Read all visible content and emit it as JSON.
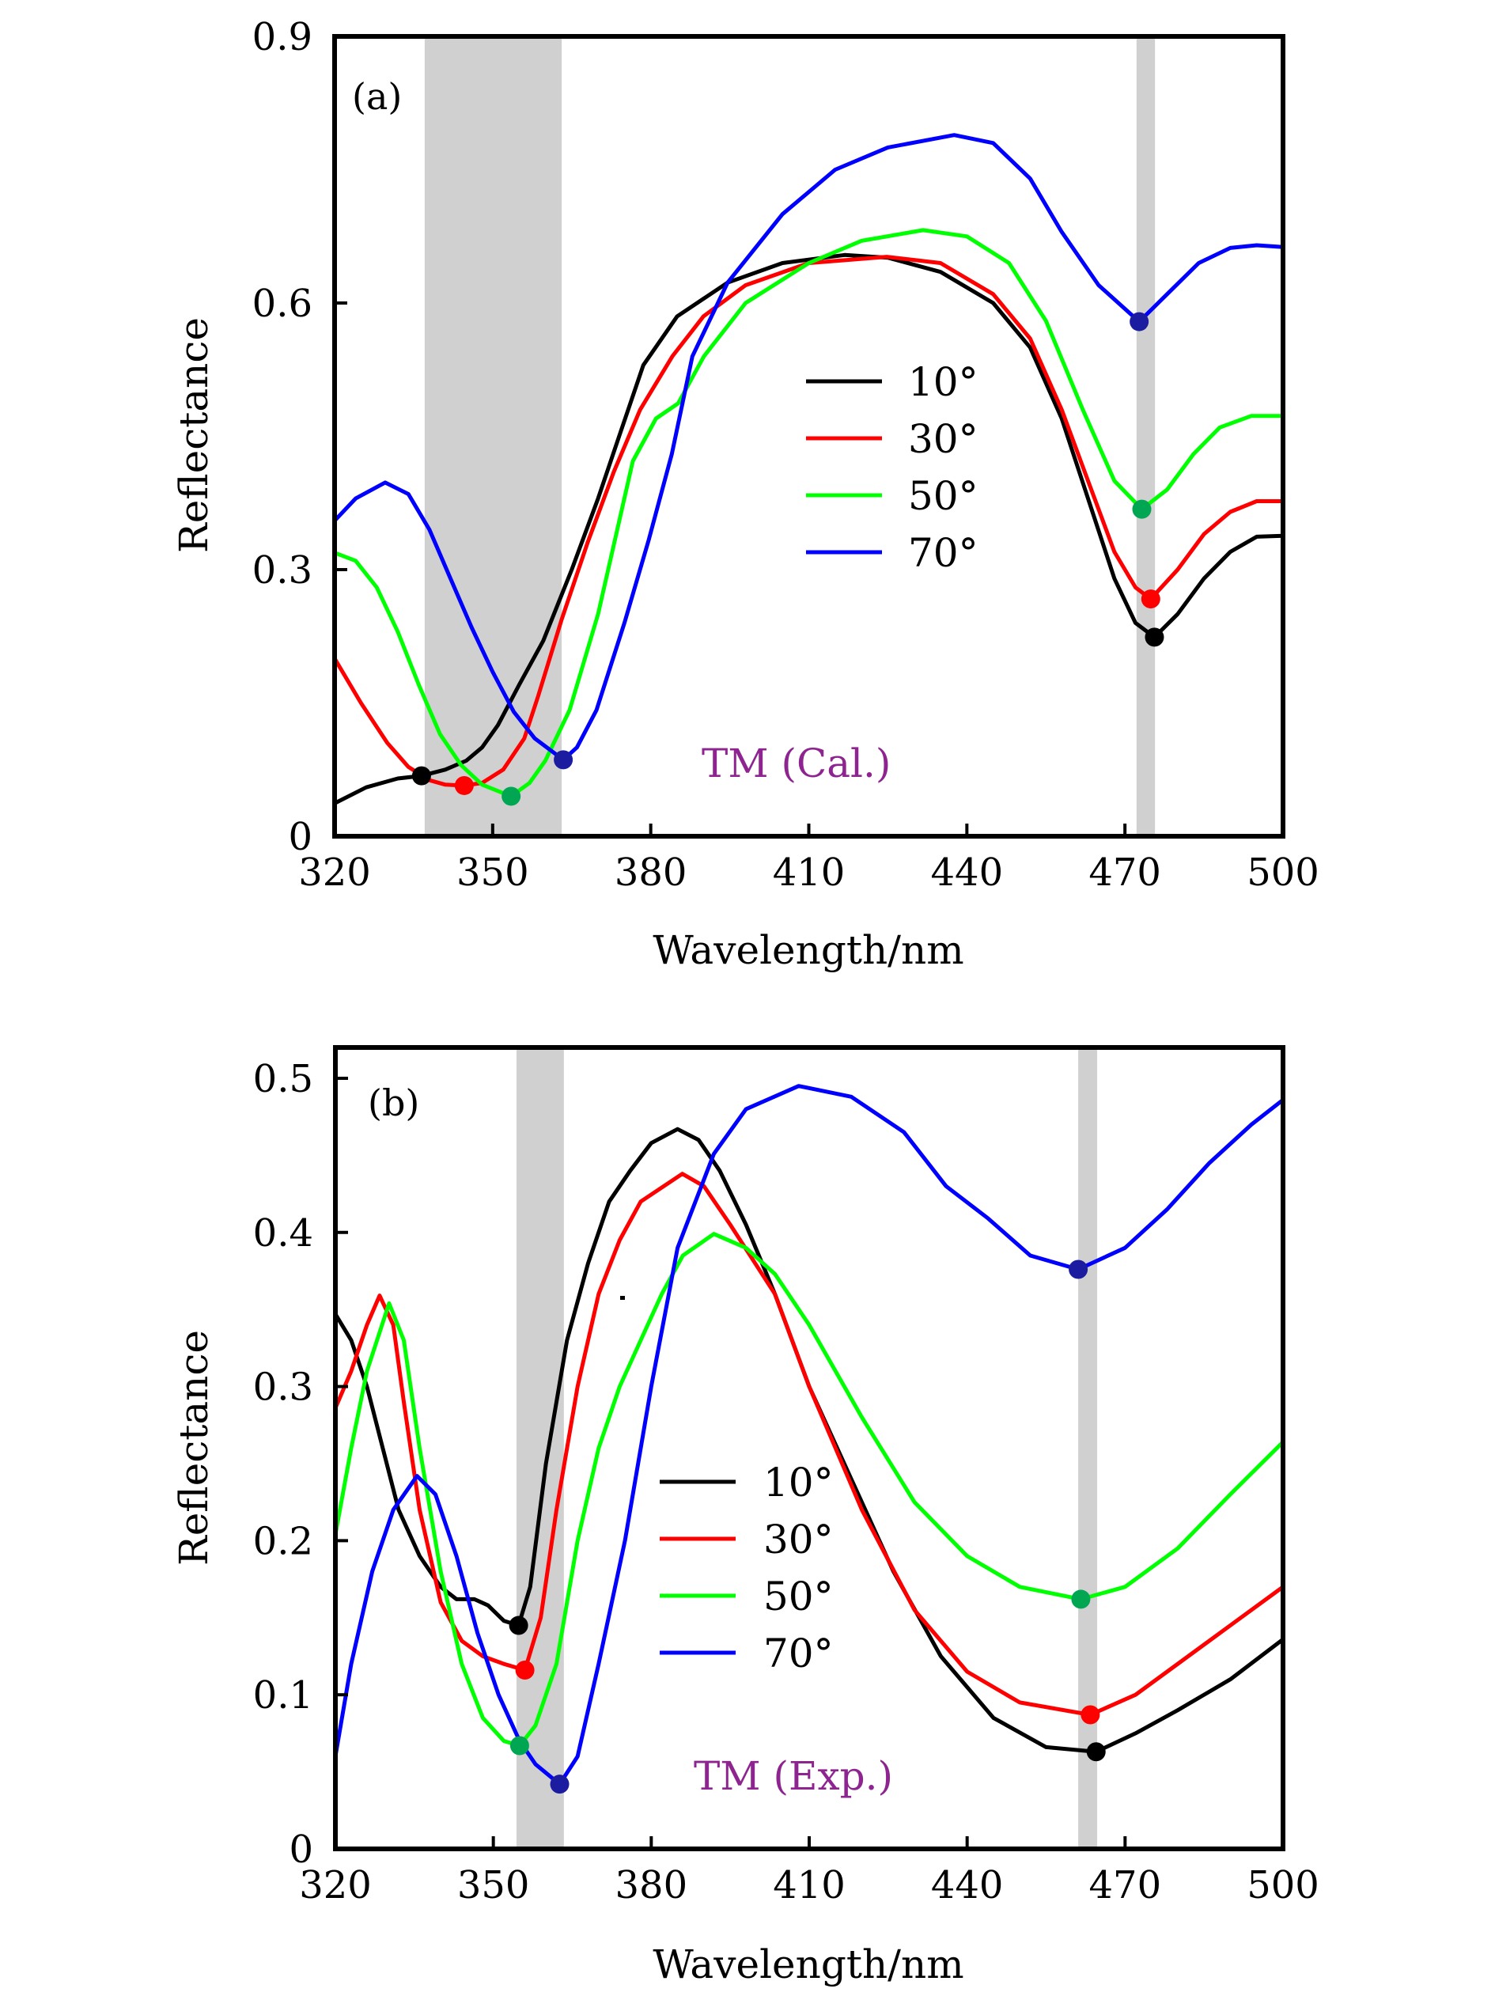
{
  "chart_data": [
    {
      "type": "line",
      "panel_label": "(a)",
      "title": "",
      "annotation": "TM (Cal.)",
      "annotation_color": "#8e2490",
      "xlabel": "Wavelength/nm",
      "ylabel": "Reflectance",
      "xlim": [
        320,
        500
      ],
      "ylim": [
        0,
        0.9
      ],
      "xticks": [
        320,
        350,
        380,
        410,
        440,
        470,
        500
      ],
      "xtick_labels": [
        "320",
        "350",
        "380",
        "410",
        "440",
        "470",
        "500"
      ],
      "yticks": [
        0,
        0.3,
        0.6,
        0.9
      ],
      "ytick_labels": [
        "0",
        "0.3",
        "0.6",
        "0.9"
      ],
      "grid": false,
      "legend_position": "center-right",
      "shaded_bands": [
        {
          "x_start": 337.1,
          "x_end": 363.1,
          "color": "#d0d0d0"
        },
        {
          "x_start": 472.2,
          "x_end": 475.7,
          "color": "#d0d0d0"
        }
      ],
      "series": [
        {
          "name": "10°",
          "color": "#000000",
          "marker_color": "#000000",
          "x": [
            320,
            326,
            332,
            336.5,
            341,
            345,
            348,
            351,
            355,
            359.6,
            365,
            370,
            374,
            378.6,
            385,
            394.6,
            405,
            416.8,
            425,
            435,
            445,
            452,
            458,
            463,
            468,
            472,
            475.6,
            480,
            485,
            490,
            495,
            500
          ],
          "y": [
            0.037,
            0.055,
            0.065,
            0.068,
            0.075,
            0.085,
            0.1,
            0.125,
            0.17,
            0.22,
            0.3,
            0.38,
            0.45,
            0.53,
            0.585,
            0.623,
            0.645,
            0.654,
            0.651,
            0.635,
            0.6,
            0.55,
            0.47,
            0.38,
            0.29,
            0.24,
            0.224,
            0.25,
            0.29,
            0.32,
            0.337,
            0.338
          ],
          "markers": [
            {
              "x": 336.5,
              "y": 0.068
            },
            {
              "x": 475.6,
              "y": 0.224
            }
          ]
        },
        {
          "name": "30°",
          "color": "#ff0000",
          "marker_color": "#ff0000",
          "x": [
            320,
            325,
            330,
            334,
            338,
            341,
            344.6,
            348,
            352,
            356,
            358.6,
            363.1,
            368,
            373,
            378,
            384.1,
            390,
            398,
            410,
            424.8,
            435,
            445,
            452,
            458,
            463,
            468,
            472,
            474.9,
            480,
            485,
            490,
            495,
            500
          ],
          "y": [
            0.2,
            0.15,
            0.105,
            0.078,
            0.063,
            0.058,
            0.057,
            0.06,
            0.075,
            0.11,
            0.157,
            0.244,
            0.33,
            0.41,
            0.48,
            0.54,
            0.585,
            0.62,
            0.645,
            0.652,
            0.645,
            0.61,
            0.56,
            0.48,
            0.4,
            0.32,
            0.28,
            0.267,
            0.3,
            0.34,
            0.365,
            0.377,
            0.377
          ],
          "markers": [
            {
              "x": 344.6,
              "y": 0.057
            },
            {
              "x": 474.9,
              "y": 0.267
            }
          ]
        },
        {
          "name": "50°",
          "color": "#00ff00",
          "marker_color": "#00a651",
          "x": [
            320,
            324,
            328,
            332,
            336,
            340,
            344,
            348,
            353.5,
            357,
            360,
            364.6,
            370,
            376.6,
            381,
            385.2,
            390.1,
            398,
            410,
            420,
            431.7,
            440,
            448,
            455,
            462,
            468,
            473.2,
            478,
            483,
            488,
            494,
            500
          ],
          "y": [
            0.319,
            0.31,
            0.28,
            0.23,
            0.17,
            0.115,
            0.08,
            0.058,
            0.045,
            0.06,
            0.085,
            0.142,
            0.25,
            0.422,
            0.47,
            0.487,
            0.54,
            0.6,
            0.645,
            0.67,
            0.682,
            0.675,
            0.645,
            0.58,
            0.48,
            0.4,
            0.368,
            0.39,
            0.43,
            0.46,
            0.473,
            0.473
          ],
          "markers": [
            {
              "x": 353.5,
              "y": 0.045
            },
            {
              "x": 473.2,
              "y": 0.368
            }
          ]
        },
        {
          "name": "70°",
          "color": "#0000ff",
          "marker_color": "#1c1ca0",
          "x": [
            320,
            324,
            329.6,
            334,
            338,
            342,
            346,
            350,
            354,
            358,
            363.4,
            366,
            369.7,
            375,
            379.6,
            384,
            387.9,
            394.6,
            405,
            415,
            425,
            437.6,
            445,
            452,
            458,
            465,
            472.7,
            478,
            484,
            490,
            495,
            500
          ],
          "y": [
            0.355,
            0.38,
            0.398,
            0.385,
            0.345,
            0.29,
            0.235,
            0.185,
            0.14,
            0.11,
            0.086,
            0.1,
            0.142,
            0.24,
            0.333,
            0.43,
            0.54,
            0.623,
            0.7,
            0.75,
            0.775,
            0.789,
            0.78,
            0.74,
            0.68,
            0.62,
            0.579,
            0.61,
            0.645,
            0.662,
            0.665,
            0.663
          ],
          "markers": [
            {
              "x": 363.4,
              "y": 0.086
            },
            {
              "x": 472.7,
              "y": 0.579
            }
          ]
        }
      ]
    },
    {
      "type": "line",
      "panel_label": "(b)",
      "title": "",
      "annotation": "TM (Exp.)",
      "annotation_color": "#8e2490",
      "xlabel": "Wavelength/nm",
      "ylabel": "Reflectance",
      "xlim": [
        320,
        500
      ],
      "ylim": [
        0,
        0.52
      ],
      "xticks": [
        320,
        350,
        380,
        410,
        440,
        470,
        500
      ],
      "xtick_labels": [
        "320",
        "350",
        "380",
        "410",
        "440",
        "470",
        "500"
      ],
      "yticks": [
        0,
        0.1,
        0.2,
        0.3,
        0.4,
        0.5
      ],
      "ytick_labels": [
        "0",
        "0.1",
        "0.2",
        "0.3",
        "0.4",
        "0.5"
      ],
      "grid": false,
      "legend_position": "center-left",
      "shaded_bands": [
        {
          "x_start": 354.4,
          "x_end": 363.4,
          "color": "#d0d0d0"
        },
        {
          "x_start": 461.1,
          "x_end": 464.7,
          "color": "#d0d0d0"
        }
      ],
      "series": [
        {
          "name": "10°",
          "color": "#000000",
          "marker_color": "#000000",
          "x": [
            320,
            323,
            326,
            329,
            332,
            336,
            340,
            343,
            346.4,
            349,
            352,
            354.8,
            357,
            360,
            364,
            368,
            372,
            376,
            380,
            385,
            389,
            393,
            398,
            403.5,
            410,
            418,
            426,
            435,
            445,
            455,
            464.5,
            472,
            480,
            490,
            500
          ],
          "y": [
            0.347,
            0.33,
            0.3,
            0.26,
            0.22,
            0.19,
            0.17,
            0.162,
            0.162,
            0.158,
            0.148,
            0.145,
            0.17,
            0.25,
            0.33,
            0.38,
            0.42,
            0.44,
            0.458,
            0.467,
            0.46,
            0.44,
            0.405,
            0.36,
            0.3,
            0.24,
            0.18,
            0.125,
            0.085,
            0.066,
            0.063,
            0.075,
            0.09,
            0.11,
            0.136
          ],
          "markers": [
            {
              "x": 354.8,
              "y": 0.145
            },
            {
              "x": 464.5,
              "y": 0.063
            }
          ]
        },
        {
          "name": "30°",
          "color": "#ff0000",
          "marker_color": "#ff0000",
          "x": [
            320,
            323,
            326,
            328.4,
            331,
            333,
            336,
            340,
            344,
            348,
            352,
            356,
            359,
            362,
            366,
            370,
            374,
            378,
            385.9,
            390,
            395,
            403.5,
            410,
            420,
            430,
            440,
            450,
            463.4,
            472,
            480,
            490,
            500
          ],
          "y": [
            0.286,
            0.31,
            0.34,
            0.359,
            0.34,
            0.29,
            0.22,
            0.16,
            0.135,
            0.125,
            0.12,
            0.116,
            0.15,
            0.22,
            0.3,
            0.36,
            0.395,
            0.42,
            0.438,
            0.43,
            0.405,
            0.36,
            0.3,
            0.22,
            0.155,
            0.115,
            0.095,
            0.087,
            0.1,
            0.12,
            0.145,
            0.17
          ],
          "markers": [
            {
              "x": 356.0,
              "y": 0.116
            },
            {
              "x": 463.4,
              "y": 0.087
            }
          ]
        },
        {
          "name": "50°",
          "color": "#00ff00",
          "marker_color": "#00a651",
          "x": [
            320,
            323,
            326,
            330.2,
            333,
            336,
            340,
            344,
            348,
            352,
            355,
            358,
            362,
            366,
            370,
            374,
            378,
            382,
            386,
            391.9,
            398,
            403.5,
            410,
            420,
            430,
            440,
            450,
            461.6,
            470,
            480,
            490,
            500
          ],
          "y": [
            0.204,
            0.26,
            0.31,
            0.354,
            0.33,
            0.26,
            0.18,
            0.12,
            0.085,
            0.07,
            0.067,
            0.08,
            0.12,
            0.2,
            0.26,
            0.3,
            0.33,
            0.36,
            0.385,
            0.399,
            0.39,
            0.373,
            0.34,
            0.28,
            0.225,
            0.19,
            0.17,
            0.162,
            0.17,
            0.195,
            0.23,
            0.264
          ],
          "markers": [
            {
              "x": 355.0,
              "y": 0.067
            },
            {
              "x": 461.6,
              "y": 0.162
            }
          ]
        },
        {
          "name": "70°",
          "color": "#0000ff",
          "marker_color": "#1c1ca0",
          "x": [
            320,
            323,
            327,
            331,
            335.5,
            339,
            343,
            347,
            351,
            355,
            358,
            362.6,
            366,
            370,
            375,
            380,
            385,
            391.9,
            398,
            408,
            418,
            428,
            436,
            444,
            452,
            461.1,
            470,
            478,
            486,
            494,
            500
          ],
          "y": [
            0.06,
            0.12,
            0.18,
            0.22,
            0.242,
            0.23,
            0.19,
            0.14,
            0.1,
            0.07,
            0.055,
            0.042,
            0.06,
            0.12,
            0.2,
            0.3,
            0.39,
            0.451,
            0.48,
            0.495,
            0.488,
            0.465,
            0.43,
            0.409,
            0.385,
            0.376,
            0.39,
            0.415,
            0.445,
            0.47,
            0.486
          ],
          "markers": [
            {
              "x": 362.6,
              "y": 0.042
            },
            {
              "x": 461.1,
              "y": 0.376
            }
          ]
        }
      ]
    }
  ]
}
